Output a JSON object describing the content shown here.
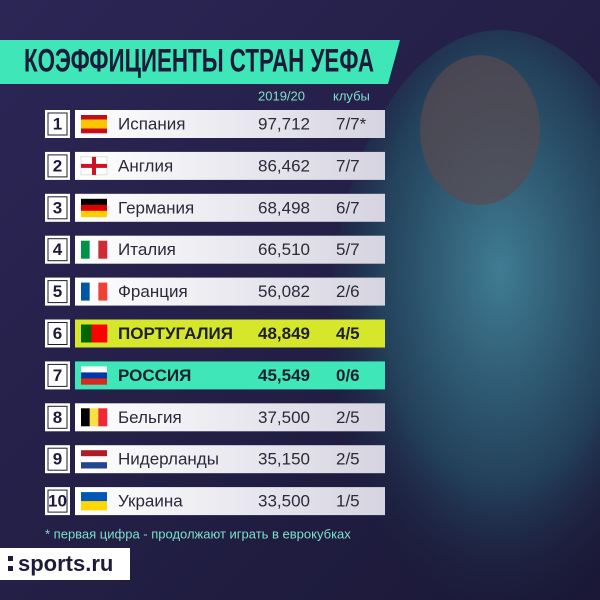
{
  "header": {
    "title": "КОЭФФИЦИЕНТЫ СТРАН УЕФА"
  },
  "table": {
    "columns": [
      "2019/20",
      "клубы"
    ],
    "rows": [
      [
        "1",
        "Испания",
        "97,712",
        "7/7*"
      ],
      [
        "2",
        "Англия",
        "86,462",
        "7/7"
      ],
      [
        "3",
        "Германия",
        "68,498",
        "6/7"
      ],
      [
        "4",
        "Италия",
        "66,510",
        "5/7"
      ],
      [
        "5",
        "Франция",
        "56,082",
        "2/6"
      ],
      [
        "6",
        "ПОРТУГАЛИЯ",
        "48,849",
        "4/5"
      ],
      [
        "7",
        "РОССИЯ",
        "45,549",
        "0/6"
      ],
      [
        "8",
        "Бельгия",
        "37,500",
        "2/5"
      ],
      [
        "9",
        "Нидерланды",
        "35,150",
        "2/5"
      ],
      [
        "10",
        "Украина",
        "33,500",
        "1/5"
      ]
    ]
  },
  "footnote": "* первая цифра - продолжают играть в еврокубках",
  "logo": "sports.ru"
}
